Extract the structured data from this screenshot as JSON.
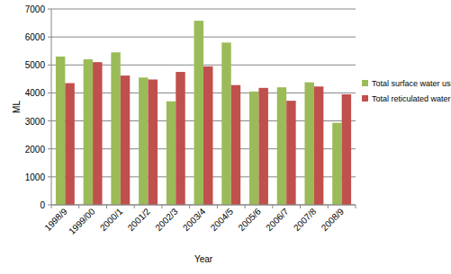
{
  "chart_data": {
    "type": "bar",
    "categories": [
      "1998/9",
      "1999/00",
      "2000/1",
      "2001/2",
      "2002/3",
      "2003/4",
      "2004/5",
      "2005/6",
      "2006/7",
      "2007/8",
      "2008/9"
    ],
    "series": [
      {
        "name": "Total surface water use",
        "color": "#9bbb59",
        "values": [
          5300,
          5200,
          5450,
          4550,
          3700,
          6580,
          5800,
          4050,
          4200,
          4380,
          2930
        ]
      },
      {
        "name": "Total reticulated water use",
        "color": "#c0504d",
        "values": [
          4350,
          5100,
          4620,
          4480,
          4750,
          4950,
          4280,
          4180,
          3720,
          4230,
          3950
        ]
      }
    ],
    "x_label": "Year",
    "y_label": "ML",
    "ylim": [
      0,
      7000
    ],
    "yticks": [
      0,
      1000,
      2000,
      3000,
      4000,
      5000,
      6000,
      7000
    ],
    "grid": true,
    "legend": "right"
  }
}
